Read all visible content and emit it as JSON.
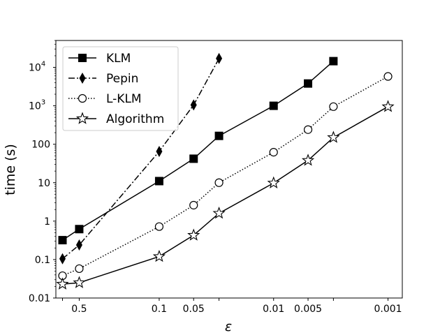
{
  "chart_data": {
    "type": "line",
    "xlabel": "ε",
    "ylabel": "time (s)",
    "x_scale": "log",
    "x_reversed": true,
    "y_scale": "log",
    "xlim": [
      0.8,
      0.00075
    ],
    "ylim": [
      0.01,
      50000
    ],
    "grid": false,
    "legend_position": "top-left",
    "x_ticks": [
      {
        "value": 0.7,
        "label": ""
      },
      {
        "value": 0.5,
        "label": "0.5"
      },
      {
        "value": 0.1,
        "label": "0.1"
      },
      {
        "value": 0.05,
        "label": "0.05"
      },
      {
        "value": 0.03,
        "label": ""
      },
      {
        "value": 0.01,
        "label": "0.01"
      },
      {
        "value": 0.005,
        "label": "0.005"
      },
      {
        "value": 0.003,
        "label": ""
      },
      {
        "value": 0.001,
        "label": "0.001"
      }
    ],
    "y_ticks": [
      {
        "value": 0.01,
        "label": "0.01"
      },
      {
        "value": 0.1,
        "label": "0.1"
      },
      {
        "value": 1,
        "label": "1"
      },
      {
        "value": 10,
        "label": "10"
      },
      {
        "value": 100,
        "label": "100"
      },
      {
        "value": 1000,
        "label": "10",
        "sup": "3"
      },
      {
        "value": 10000,
        "label": "10",
        "sup": "4"
      }
    ],
    "series": [
      {
        "name": "KLM",
        "marker": "square",
        "line": "solid",
        "x": [
          0.7,
          0.5,
          0.1,
          0.05,
          0.03,
          0.01,
          0.005,
          0.003
        ],
        "y": [
          0.32,
          0.62,
          11,
          42,
          165,
          1000,
          3800,
          14500
        ]
      },
      {
        "name": "Pepin",
        "marker": "thin-diamond",
        "line": "dashdot",
        "x": [
          0.7,
          0.5,
          0.1,
          0.05,
          0.03
        ],
        "y": [
          0.105,
          0.24,
          65,
          1050,
          17000
        ]
      },
      {
        "name": "L-KLM",
        "marker": "circle-open",
        "line": "dotted",
        "x": [
          0.7,
          0.5,
          0.1,
          0.05,
          0.03,
          0.01,
          0.005,
          0.003,
          0.001
        ],
        "y": [
          0.038,
          0.058,
          0.72,
          2.6,
          10,
          62,
          240,
          950,
          5800
        ]
      },
      {
        "name": "Algorithm",
        "marker": "star-open",
        "line": "solid",
        "x": [
          0.7,
          0.5,
          0.1,
          0.05,
          0.03,
          0.01,
          0.005,
          0.003,
          0.001
        ],
        "y": [
          0.023,
          0.025,
          0.12,
          0.43,
          1.6,
          9.8,
          38,
          150,
          950
        ]
      }
    ]
  }
}
